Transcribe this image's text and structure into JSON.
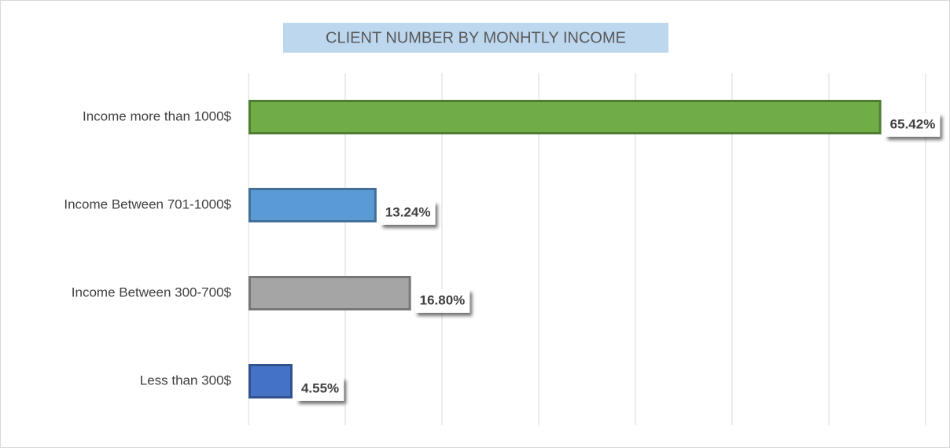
{
  "chart_data": {
    "type": "bar",
    "orientation": "horizontal",
    "title": "CLIENT NUMBER BY MONHTLY INCOME",
    "categories": [
      "Income more than 1000$",
      "Income Between 701-1000$",
      "Income Between 300-700$",
      "Less than 300$"
    ],
    "values": [
      65.42,
      13.24,
      16.8,
      4.55
    ],
    "value_labels": [
      "65.42%",
      "13.24%",
      "16.80%",
      "4.55%"
    ],
    "colors": [
      "#70ad47",
      "#5b9bd5",
      "#a5a5a5",
      "#4472c4"
    ],
    "xlim": [
      0,
      70
    ],
    "xticks": [
      0,
      10,
      20,
      30,
      40,
      50,
      60,
      70
    ],
    "grid": true
  }
}
